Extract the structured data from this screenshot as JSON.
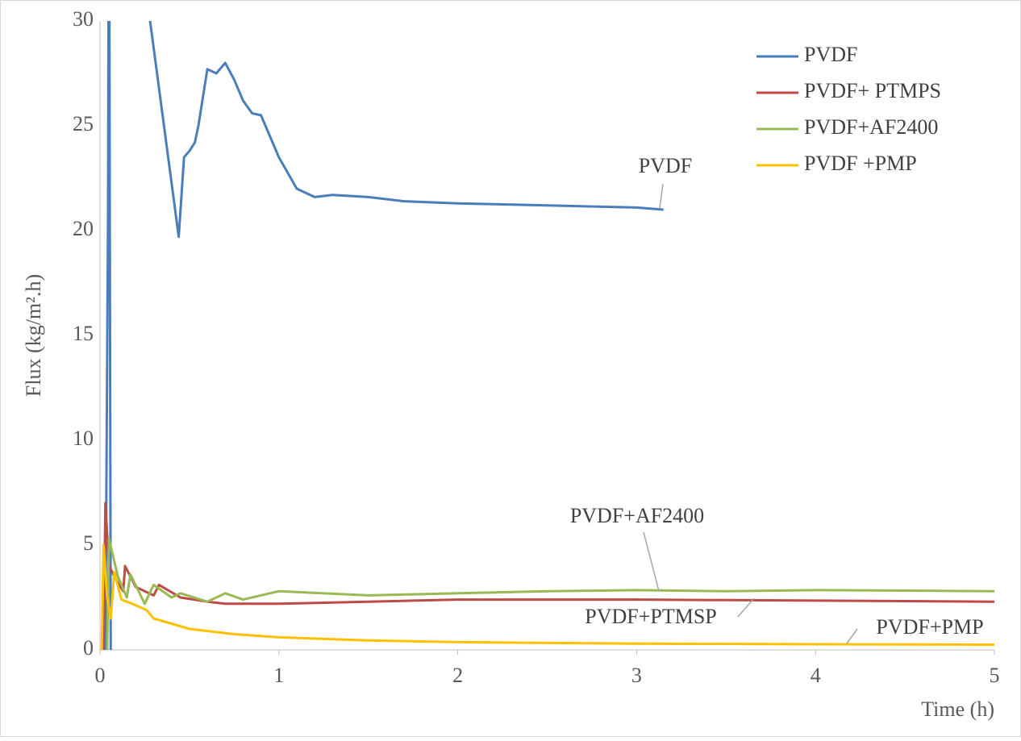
{
  "chart_data": {
    "type": "line",
    "x_label": "Time (h)",
    "y_label": "Flux (kg/m².h)",
    "xlim": [
      0,
      5
    ],
    "xticks": [
      0,
      1,
      2,
      3,
      4,
      5
    ],
    "ylim": [
      0,
      30
    ],
    "yticks": [
      0,
      5,
      10,
      15,
      20,
      25,
      30
    ],
    "legend": "top-right",
    "series": [
      {
        "name": "PVDF",
        "color": "#4a7ebb",
        "x": [
          0.03,
          0.045,
          0.05,
          0.06,
          0.07,
          0.22,
          0.28,
          0.44,
          0.47,
          0.5,
          0.53,
          0.55,
          0.6,
          0.65,
          0.7,
          0.75,
          0.8,
          0.85,
          0.9,
          1.0,
          1.1,
          1.2,
          1.3,
          1.5,
          1.7,
          2.0,
          2.5,
          3.0,
          3.15
        ],
        "values": [
          0,
          21,
          40,
          0,
          null,
          34,
          30,
          19.7,
          23.5,
          23.8,
          24.2,
          25,
          27.7,
          27.5,
          28,
          27.2,
          26.2,
          25.6,
          25.5,
          23.5,
          22,
          21.6,
          21.7,
          21.6,
          21.4,
          21.3,
          21.2,
          21.1,
          21.0
        ]
      },
      {
        "name": "PVDF+ PTMPS",
        "color": "#be4b48",
        "x": [
          0.02,
          0.03,
          0.05,
          0.1,
          0.13,
          0.14,
          0.2,
          0.3,
          0.33,
          0.45,
          0.6,
          0.7,
          1.0,
          1.5,
          2.0,
          3.0,
          4.0,
          5.0
        ],
        "values": [
          0,
          7,
          4,
          3.2,
          2.8,
          4,
          3,
          2.6,
          3.1,
          2.5,
          2.3,
          2.2,
          2.2,
          2.3,
          2.4,
          2.4,
          2.35,
          2.3
        ]
      },
      {
        "name": "PVDF+AF2400",
        "color": "#98b954",
        "x": [
          0.04,
          0.05,
          0.1,
          0.15,
          0.17,
          0.25,
          0.3,
          0.4,
          0.45,
          0.6,
          0.7,
          0.8,
          1.0,
          1.5,
          2.0,
          2.5,
          3.0,
          3.5,
          4.0,
          5.0
        ],
        "values": [
          0,
          5.3,
          3.5,
          2.5,
          3.6,
          2.2,
          3.1,
          2.5,
          2.7,
          2.3,
          2.7,
          2.4,
          2.8,
          2.6,
          2.7,
          2.8,
          2.85,
          2.8,
          2.85,
          2.8
        ]
      },
      {
        "name": "PVDF +PMP",
        "color": "#ffc000",
        "x": [
          0.01,
          0.02,
          0.04,
          0.06,
          0.08,
          0.12,
          0.18,
          0.26,
          0.3,
          0.5,
          0.75,
          1.0,
          1.5,
          2.0,
          3.0,
          4.0,
          5.0
        ],
        "values": [
          0,
          5,
          2.5,
          1.5,
          3.7,
          2.4,
          2.2,
          1.9,
          1.5,
          1.0,
          0.75,
          0.6,
          0.45,
          0.37,
          0.3,
          0.27,
          0.25
        ]
      }
    ],
    "annotations": [
      "PVDF",
      "PVDF+AF2400",
      "PVDF+PTMSP",
      "PVDF+PMP"
    ]
  }
}
